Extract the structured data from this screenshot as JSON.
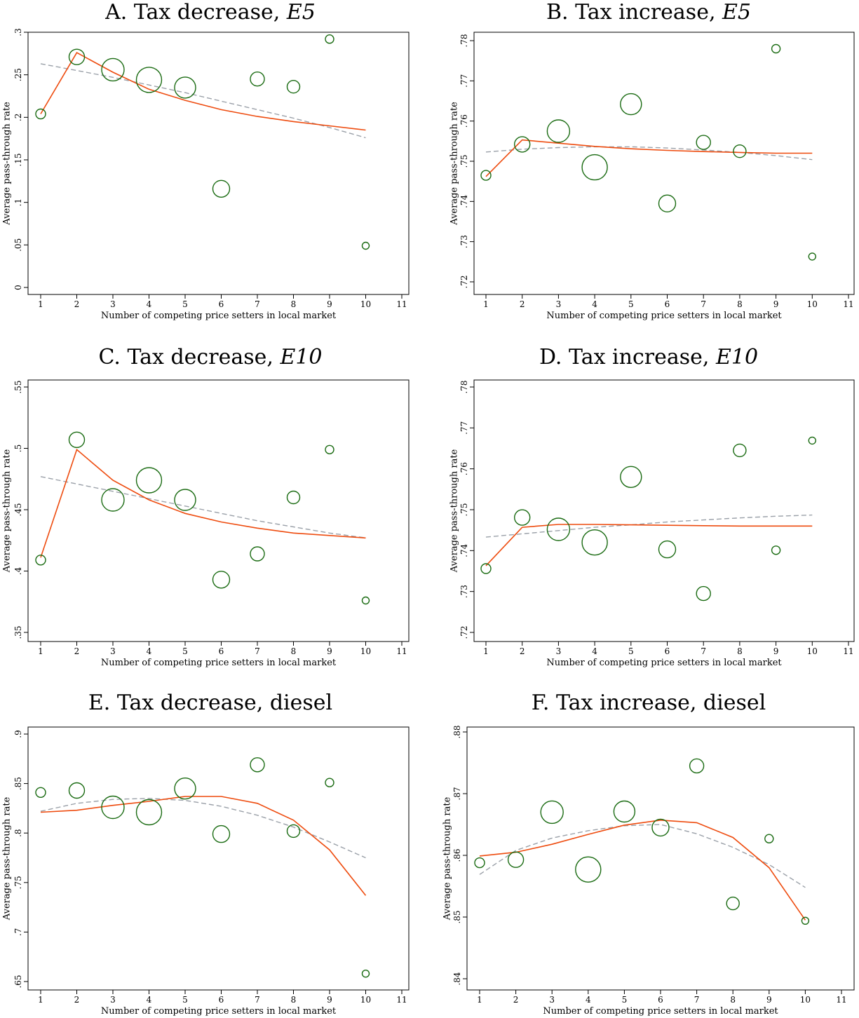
{
  "charts": [
    {
      "id": "A",
      "title_main": "A. Tax decrease, ",
      "title_italic": "E5",
      "chart_data": {
        "type": "scatter",
        "xlabel": "Number of competing price setters in local market",
        "ylabel": "Average pass-through rate",
        "xlim": [
          1,
          11
        ],
        "ylim": [
          0,
          0.3
        ],
        "xticks": [
          "1",
          "2",
          "3",
          "4",
          "5",
          "6",
          "7",
          "8",
          "9",
          "10",
          "11"
        ],
        "yticks": [
          "0",
          ".05",
          ".1",
          ".15",
          ".2",
          ".25",
          ".3"
        ],
        "grid": false,
        "scatter": {
          "x": [
            1,
            2,
            3,
            4,
            5,
            6,
            7,
            8,
            9,
            10
          ],
          "y": [
            0.204,
            0.271,
            0.256,
            0.244,
            0.235,
            0.116,
            0.245,
            0.236,
            0.292,
            0.049
          ],
          "size": [
            7,
            11,
            16,
            18,
            15,
            12,
            10,
            9,
            6,
            5
          ]
        },
        "fit_line": {
          "x": [
            1,
            2,
            3,
            4,
            5,
            6,
            7,
            8,
            9,
            10
          ],
          "y": [
            0.204,
            0.276,
            0.253,
            0.233,
            0.22,
            0.209,
            0.201,
            0.195,
            0.19,
            0.185
          ]
        },
        "quadratic_fit": {
          "x": [
            1,
            2,
            3,
            4,
            5,
            6,
            7,
            8,
            9,
            10
          ],
          "y": [
            0.263,
            0.255,
            0.247,
            0.238,
            0.229,
            0.219,
            0.209,
            0.199,
            0.188,
            0.176
          ]
        }
      }
    },
    {
      "id": "B",
      "title_main": "B. Tax increase, ",
      "title_italic": "E5",
      "chart_data": {
        "type": "scatter",
        "xlabel": "Number of competing price setters in local market",
        "ylabel": "Average pass-through rate",
        "xlim": [
          1,
          11
        ],
        "ylim": [
          0.72,
          0.78
        ],
        "xticks": [
          "1",
          "2",
          "3",
          "4",
          "5",
          "6",
          "7",
          "8",
          "9",
          "10",
          "11"
        ],
        "yticks": [
          ".72",
          ".73",
          ".74",
          ".75",
          ".76",
          ".77",
          ".78"
        ],
        "grid": false,
        "scatter": {
          "x": [
            1,
            2,
            3,
            4,
            5,
            6,
            7,
            8,
            9,
            10
          ],
          "y": [
            0.7465,
            0.7542,
            0.7575,
            0.7485,
            0.7642,
            0.7395,
            0.7547,
            0.7525,
            0.778,
            0.7263
          ],
          "size": [
            7,
            11,
            16,
            18,
            15,
            12,
            10,
            9,
            6,
            5
          ]
        },
        "fit_line": {
          "x": [
            1,
            2,
            3,
            4,
            5,
            6,
            7,
            8,
            9,
            10
          ],
          "y": [
            0.7462,
            0.7553,
            0.7545,
            0.7537,
            0.7531,
            0.7527,
            0.7524,
            0.7522,
            0.752,
            0.752
          ]
        },
        "quadratic_fit": {
          "x": [
            1,
            2,
            3,
            4,
            5,
            6,
            7,
            8,
            9,
            10
          ],
          "y": [
            0.7523,
            0.753,
            0.7534,
            0.7536,
            0.7536,
            0.7533,
            0.7528,
            0.7522,
            0.7514,
            0.7504
          ]
        }
      }
    },
    {
      "id": "C",
      "title_main": "C. Tax decrease, ",
      "title_italic": "E10",
      "chart_data": {
        "type": "scatter",
        "xlabel": "Number of competing price setters in local market",
        "ylabel": "Average pass-through rate",
        "xlim": [
          1,
          11
        ],
        "ylim": [
          0.35,
          0.55
        ],
        "xticks": [
          "1",
          "2",
          "3",
          "4",
          "5",
          "6",
          "7",
          "8",
          "9",
          "10",
          "11"
        ],
        "yticks": [
          ".35",
          ".4",
          ".45",
          ".5",
          ".55"
        ],
        "grid": false,
        "scatter": {
          "x": [
            1,
            2,
            3,
            4,
            5,
            6,
            7,
            8,
            9,
            10
          ],
          "y": [
            0.409,
            0.507,
            0.458,
            0.474,
            0.458,
            0.393,
            0.414,
            0.46,
            0.499,
            0.376
          ],
          "size": [
            7,
            11,
            16,
            18,
            15,
            12,
            10,
            9,
            6,
            5
          ]
        },
        "fit_line": {
          "x": [
            1,
            2,
            3,
            4,
            5,
            6,
            7,
            8,
            9,
            10
          ],
          "y": [
            0.411,
            0.499,
            0.474,
            0.458,
            0.447,
            0.44,
            0.435,
            0.431,
            0.429,
            0.427
          ]
        },
        "quadratic_fit": {
          "x": [
            1,
            2,
            3,
            4,
            5,
            6,
            7,
            8,
            9,
            10
          ],
          "y": [
            0.477,
            0.471,
            0.465,
            0.459,
            0.453,
            0.447,
            0.441,
            0.436,
            0.431,
            0.427
          ]
        }
      }
    },
    {
      "id": "D",
      "title_main": "D. Tax increase, ",
      "title_italic": "E10",
      "chart_data": {
        "type": "scatter",
        "xlabel": "Number of competing price setters in local market",
        "ylabel": "Average pass-through rate",
        "xlim": [
          1,
          11
        ],
        "ylim": [
          0.72,
          0.78
        ],
        "xticks": [
          "1",
          "2",
          "3",
          "4",
          "5",
          "6",
          "7",
          "8",
          "9",
          "10",
          "11"
        ],
        "yticks": [
          ".72",
          ".73",
          ".74",
          ".75",
          ".76",
          ".77",
          ".78"
        ],
        "grid": false,
        "scatter": {
          "x": [
            1,
            2,
            3,
            4,
            5,
            6,
            7,
            8,
            9,
            10
          ],
          "y": [
            0.7356,
            0.7481,
            0.7452,
            0.742,
            0.758,
            0.7403,
            0.7295,
            0.7645,
            0.7401,
            0.7669
          ],
          "size": [
            7,
            11,
            16,
            18,
            15,
            12,
            10,
            9,
            6,
            5
          ]
        },
        "fit_line": {
          "x": [
            1,
            2,
            3,
            4,
            5,
            6,
            7,
            8,
            9,
            10
          ],
          "y": [
            0.7363,
            0.7457,
            0.7464,
            0.7464,
            0.7463,
            0.7462,
            0.7461,
            0.746,
            0.746,
            0.746
          ]
        },
        "quadratic_fit": {
          "x": [
            1,
            2,
            3,
            4,
            5,
            6,
            7,
            8,
            9,
            10
          ],
          "y": [
            0.7433,
            0.7441,
            0.7449,
            0.7457,
            0.7463,
            0.747,
            0.7475,
            0.748,
            0.7484,
            0.7487
          ]
        }
      }
    },
    {
      "id": "E",
      "title_main": "E. Tax decrease, diesel",
      "title_italic": "",
      "chart_data": {
        "type": "scatter",
        "xlabel": "Number of competing price setters in local market",
        "ylabel": "Average pass-through rate",
        "xlim": [
          1,
          11
        ],
        "ylim": [
          0.65,
          0.9
        ],
        "xticks": [
          "1",
          "2",
          "3",
          "4",
          "5",
          "6",
          "7",
          "8",
          "9",
          "10",
          "11"
        ],
        "yticks": [
          ".65",
          ".7",
          ".75",
          ".8",
          ".85",
          ".9"
        ],
        "grid": false,
        "scatter": {
          "x": [
            1,
            2,
            3,
            4,
            5,
            6,
            7,
            8,
            9,
            10
          ],
          "y": [
            0.841,
            0.843,
            0.826,
            0.821,
            0.845,
            0.799,
            0.869,
            0.802,
            0.851,
            0.658
          ],
          "size": [
            7,
            11,
            16,
            18,
            15,
            12,
            10,
            9,
            6,
            5
          ]
        },
        "fit_line": {
          "x": [
            1,
            2,
            3,
            4,
            5,
            6,
            7,
            8,
            9,
            10
          ],
          "y": [
            0.821,
            0.823,
            0.828,
            0.832,
            0.837,
            0.837,
            0.83,
            0.813,
            0.783,
            0.737
          ]
        },
        "quadratic_fit": {
          "x": [
            1,
            2,
            3,
            4,
            5,
            6,
            7,
            8,
            9,
            10
          ],
          "y": [
            0.822,
            0.83,
            0.834,
            0.835,
            0.833,
            0.827,
            0.818,
            0.806,
            0.791,
            0.775
          ]
        }
      }
    },
    {
      "id": "F",
      "title_main": "F. Tax increase, diesel",
      "title_italic": "",
      "chart_data": {
        "type": "scatter",
        "xlabel": "Number of competing price setters in local market",
        "ylabel": "Average pass-through rate",
        "xlim": [
          1,
          11
        ],
        "ylim": [
          0.84,
          0.88
        ],
        "xticks": [
          "1",
          "2",
          "3",
          "4",
          "5",
          "6",
          "7",
          "8",
          "9",
          "10",
          "11"
        ],
        "yticks": [
          ".84",
          ".85",
          ".86",
          ".87",
          ".88"
        ],
        "grid": false,
        "scatter": {
          "x": [
            1,
            2,
            3,
            4,
            5,
            6,
            7,
            8,
            9,
            10
          ],
          "y": [
            0.8588,
            0.8593,
            0.867,
            0.8577,
            0.8671,
            0.8645,
            0.8745,
            0.8522,
            0.8627,
            0.8494
          ],
          "size": [
            7,
            11,
            16,
            18,
            15,
            12,
            10,
            9,
            6,
            5
          ]
        },
        "fit_line": {
          "x": [
            1,
            2,
            3,
            4,
            5,
            6,
            7,
            8,
            9,
            10
          ],
          "y": [
            0.8599,
            0.8605,
            0.8618,
            0.8634,
            0.8649,
            0.8657,
            0.8653,
            0.8629,
            0.858,
            0.8495
          ]
        },
        "quadratic_fit": {
          "x": [
            1,
            2,
            3,
            4,
            5,
            6,
            7,
            8,
            9,
            10
          ],
          "y": [
            0.8569,
            0.8608,
            0.8628,
            0.864,
            0.8648,
            0.865,
            0.8635,
            0.8613,
            0.8585,
            0.8548
          ]
        }
      }
    }
  ]
}
